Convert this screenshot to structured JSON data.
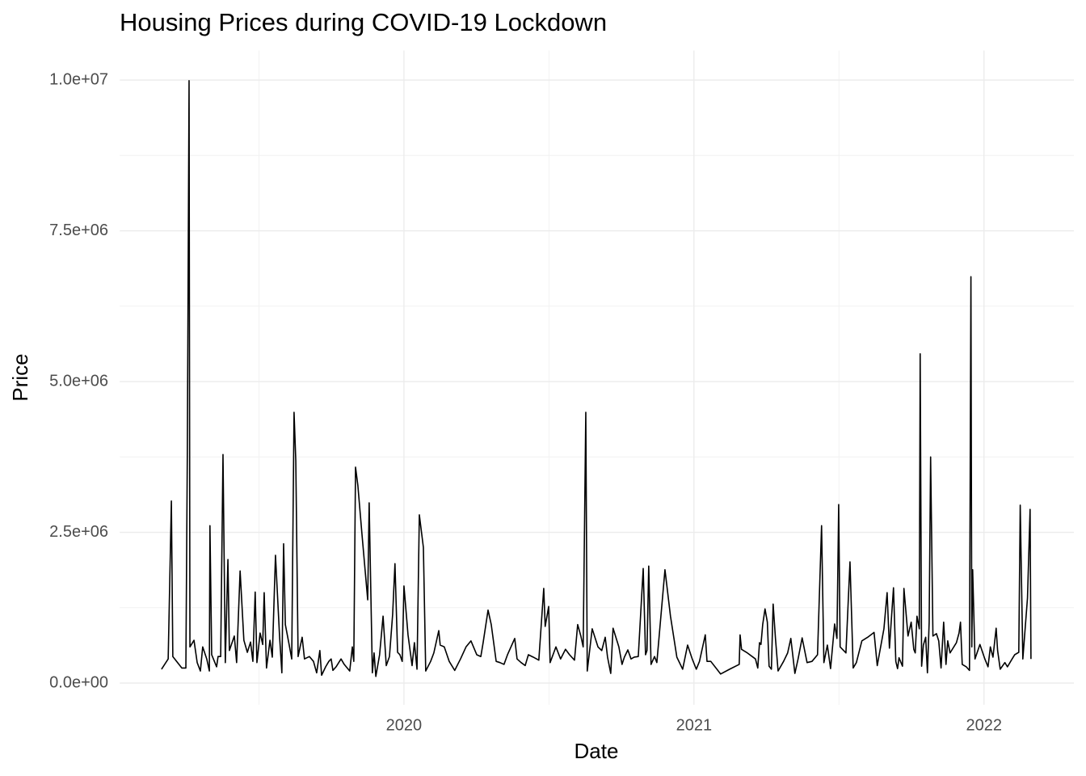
{
  "chart_data": {
    "type": "line",
    "title": "Housing Prices during COVID-19 Lockdown",
    "x_label": "Date",
    "y_label": "Price",
    "color": "#000000",
    "grid": true,
    "minor_grid": true,
    "xlim": [
      2019.02,
      2022.31
    ],
    "xticks": [
      2020,
      2021,
      2022
    ],
    "ylim": [
      -360000,
      10490000
    ],
    "yticks": [
      {
        "value": 0,
        "label": "0.0e+00"
      },
      {
        "value": 2500000,
        "label": "2.5e+06"
      },
      {
        "value": 5000000,
        "label": "5.0e+06"
      },
      {
        "value": 7500000,
        "label": "7.5e+06"
      },
      {
        "value": 10000000,
        "label": "1.0e+07"
      }
    ],
    "x": [
      2019.164,
      2019.187,
      2019.198,
      2019.203,
      2019.234,
      2019.248,
      2019.253,
      2019.259,
      2019.262,
      2019.276,
      2019.287,
      2019.298,
      2019.306,
      2019.32,
      2019.329,
      2019.331,
      2019.337,
      2019.354,
      2019.359,
      2019.368,
      2019.376,
      2019.384,
      2019.393,
      2019.398,
      2019.415,
      2019.423,
      2019.435,
      2019.448,
      2019.46,
      2019.471,
      2019.479,
      2019.487,
      2019.493,
      2019.504,
      2019.513,
      2019.518,
      2019.526,
      2019.538,
      2019.546,
      2019.557,
      2019.571,
      2019.579,
      2019.585,
      2019.591,
      2019.604,
      2019.613,
      2019.621,
      2019.627,
      2019.635,
      2019.649,
      2019.657,
      2019.674,
      2019.688,
      2019.699,
      2019.71,
      2019.716,
      2019.73,
      2019.741,
      2019.749,
      2019.755,
      2019.766,
      2019.783,
      2019.794,
      2019.813,
      2019.822,
      2019.827,
      2019.833,
      2019.841,
      2019.855,
      2019.875,
      2019.88,
      2019.891,
      2019.897,
      2019.903,
      2019.916,
      2019.928,
      2019.939,
      2019.95,
      2019.961,
      2019.969,
      2019.978,
      2019.986,
      2019.994,
      2020.0,
      2020.014,
      2020.028,
      2020.036,
      2020.045,
      2020.053,
      2020.067,
      2020.075,
      2020.092,
      2020.103,
      2020.12,
      2020.125,
      2020.139,
      2020.156,
      2020.175,
      2020.195,
      2020.214,
      2020.231,
      2020.251,
      2020.265,
      2020.273,
      2020.29,
      2020.301,
      2020.318,
      2020.331,
      2020.345,
      2020.357,
      2020.382,
      2020.39,
      2020.404,
      2020.418,
      2020.429,
      2020.446,
      2020.465,
      2020.482,
      2020.487,
      2020.499,
      2020.504,
      2020.524,
      2020.54,
      2020.557,
      2020.571,
      2020.588,
      2020.599,
      2020.61,
      2020.618,
      2020.627,
      2020.632,
      2020.649,
      2020.669,
      2020.682,
      2020.694,
      2020.702,
      2020.713,
      2020.721,
      2020.741,
      2020.752,
      2020.76,
      2020.772,
      2020.783,
      2020.794,
      2020.808,
      2020.825,
      2020.833,
      2020.838,
      2020.844,
      2020.852,
      2020.864,
      2020.872,
      2020.9,
      2020.919,
      2020.941,
      2020.961,
      2020.978,
      2020.994,
      2021.008,
      2021.019,
      2021.039,
      2021.045,
      2021.058,
      2021.092,
      2021.123,
      2021.156,
      2021.159,
      2021.164,
      2021.184,
      2021.212,
      2021.22,
      2021.226,
      2021.231,
      2021.237,
      2021.245,
      2021.253,
      2021.259,
      2021.267,
      2021.273,
      2021.281,
      2021.29,
      2021.309,
      2021.323,
      2021.334,
      2021.348,
      2021.359,
      2021.373,
      2021.39,
      2021.407,
      2021.426,
      2021.44,
      2021.448,
      2021.46,
      2021.471,
      2021.485,
      2021.493,
      2021.499,
      2021.504,
      2021.524,
      2021.538,
      2021.549,
      2021.56,
      2021.579,
      2021.599,
      2021.621,
      2021.632,
      2021.655,
      2021.666,
      2021.674,
      2021.688,
      2021.696,
      2021.702,
      2021.707,
      2021.719,
      2021.724,
      2021.738,
      2021.749,
      2021.758,
      2021.763,
      2021.769,
      2021.777,
      2021.78,
      2021.785,
      2021.791,
      2021.799,
      2021.805,
      2021.811,
      2021.816,
      2021.824,
      2021.836,
      2021.844,
      2021.852,
      2021.861,
      2021.869,
      2021.875,
      2021.883,
      2021.905,
      2021.914,
      2021.919,
      2021.925,
      2021.939,
      2021.95,
      2021.955,
      2021.958,
      2021.961,
      2021.969,
      2021.986,
      2022.003,
      2022.014,
      2022.022,
      2022.031,
      2022.042,
      2022.047,
      2022.056,
      2022.072,
      2022.081,
      2022.097,
      2022.106,
      2022.12,
      2022.125,
      2022.134,
      2022.15,
      2022.159,
      2022.162
    ],
    "values": [
      230000,
      400000,
      3020000,
      440000,
      250000,
      250000,
      3820000,
      9990000,
      600000,
      710000,
      340000,
      200000,
      600000,
      400000,
      200000,
      2610000,
      470000,
      270000,
      440000,
      440000,
      3790000,
      340000,
      2050000,
      540000,
      780000,
      340000,
      1860000,
      710000,
      510000,
      680000,
      360000,
      1510000,
      340000,
      830000,
      640000,
      1500000,
      250000,
      710000,
      430000,
      2120000,
      780000,
      170000,
      2310000,
      970000,
      640000,
      400000,
      4490000,
      3690000,
      440000,
      760000,
      400000,
      440000,
      360000,
      170000,
      540000,
      130000,
      270000,
      360000,
      400000,
      210000,
      270000,
      400000,
      310000,
      200000,
      600000,
      360000,
      3580000,
      3280000,
      2480000,
      1380000,
      2990000,
      170000,
      500000,
      110000,
      470000,
      1110000,
      290000,
      440000,
      1140000,
      1980000,
      510000,
      470000,
      360000,
      1610000,
      800000,
      290000,
      670000,
      230000,
      2790000,
      2250000,
      200000,
      360000,
      500000,
      870000,
      630000,
      600000,
      360000,
      210000,
      400000,
      600000,
      700000,
      470000,
      440000,
      670000,
      1210000,
      970000,
      360000,
      340000,
      310000,
      470000,
      740000,
      400000,
      340000,
      290000,
      470000,
      430000,
      380000,
      1570000,
      940000,
      1270000,
      340000,
      600000,
      400000,
      560000,
      470000,
      380000,
      970000,
      780000,
      600000,
      4490000,
      200000,
      900000,
      600000,
      540000,
      760000,
      430000,
      160000,
      910000,
      600000,
      310000,
      430000,
      550000,
      400000,
      430000,
      440000,
      1900000,
      470000,
      540000,
      1940000,
      310000,
      440000,
      340000,
      1880000,
      1110000,
      430000,
      230000,
      630000,
      400000,
      230000,
      360000,
      800000,
      360000,
      360000,
      150000,
      230000,
      310000,
      800000,
      560000,
      500000,
      400000,
      250000,
      670000,
      640000,
      970000,
      1230000,
      1010000,
      280000,
      230000,
      1310000,
      740000,
      200000,
      360000,
      500000,
      740000,
      160000,
      400000,
      750000,
      340000,
      360000,
      470000,
      2610000,
      340000,
      630000,
      240000,
      980000,
      740000,
      2960000,
      600000,
      500000,
      2010000,
      250000,
      340000,
      700000,
      760000,
      840000,
      290000,
      900000,
      1500000,
      580000,
      1580000,
      360000,
      240000,
      420000,
      280000,
      1570000,
      780000,
      1010000,
      560000,
      500000,
      1110000,
      900000,
      5460000,
      280000,
      630000,
      760000,
      170000,
      1010000,
      3750000,
      780000,
      820000,
      700000,
      250000,
      1010000,
      310000,
      700000,
      500000,
      670000,
      830000,
      1010000,
      310000,
      270000,
      210000,
      6740000,
      600000,
      1880000,
      400000,
      640000,
      400000,
      270000,
      600000,
      430000,
      910000,
      540000,
      230000,
      340000,
      270000,
      400000,
      470000,
      510000,
      2950000,
      400000,
      1410000,
      2880000,
      400000
    ]
  }
}
